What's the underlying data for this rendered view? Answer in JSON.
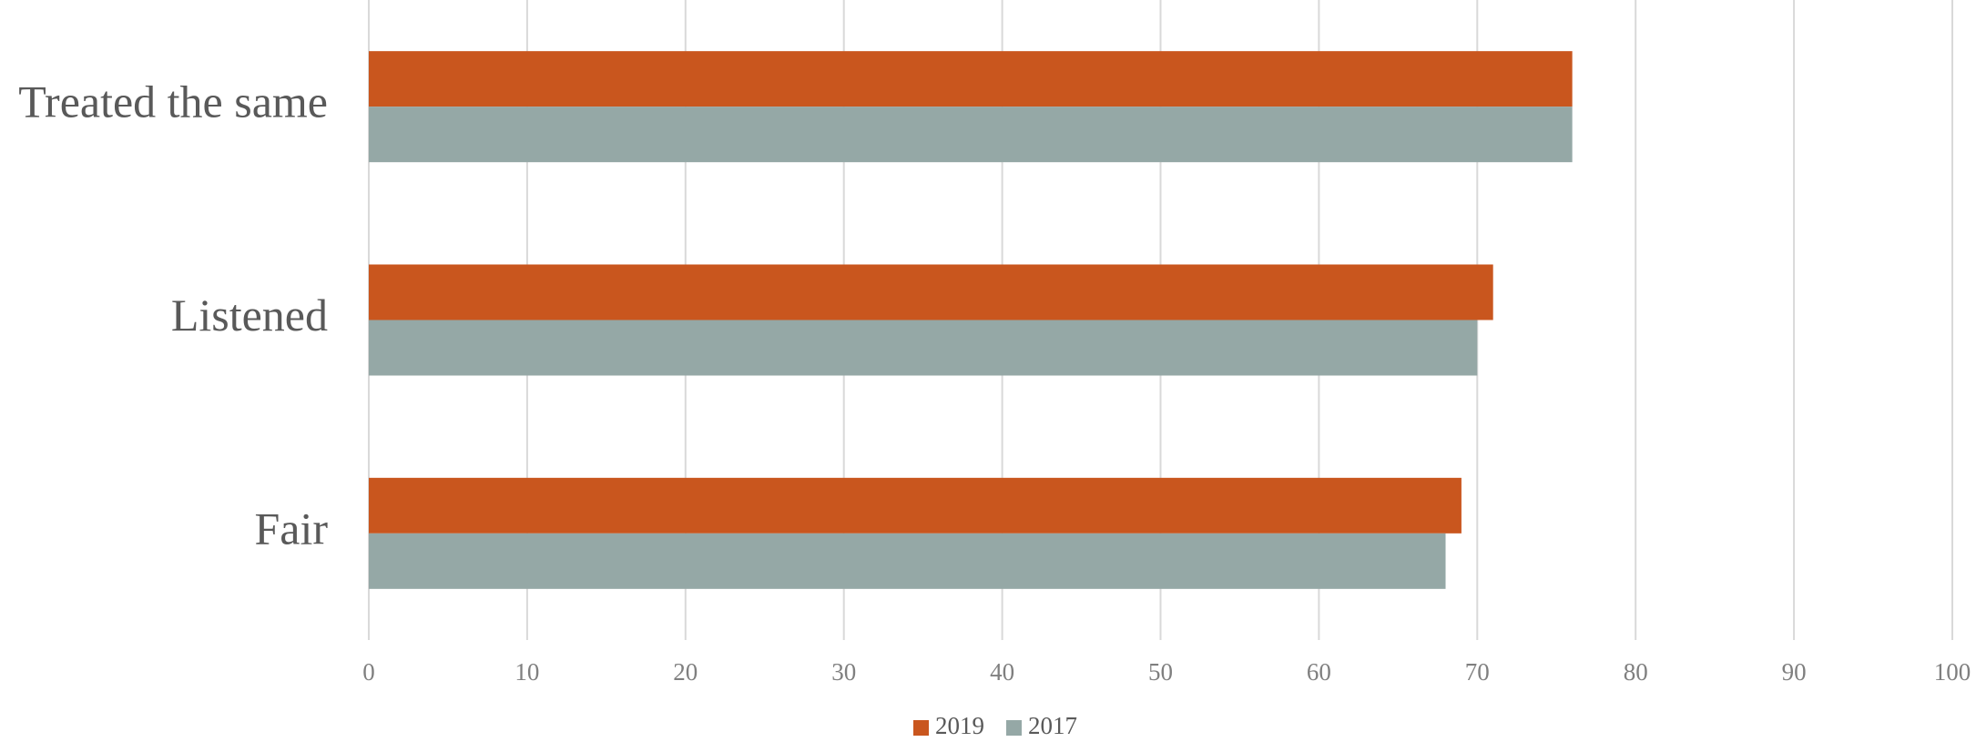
{
  "chart_data": {
    "type": "hbar",
    "categories": [
      "Treated the same",
      "Listened",
      "Fair"
    ],
    "series": [
      {
        "name": "2019",
        "color": "#c9561e",
        "values": [
          76,
          71,
          69
        ]
      },
      {
        "name": "2017",
        "color": "#95a8a6",
        "values": [
          76,
          70,
          68
        ]
      }
    ],
    "xlim": [
      0,
      100
    ],
    "xticks": [
      0,
      10,
      20,
      30,
      40,
      50,
      60,
      70,
      80,
      90,
      100
    ],
    "grid": true,
    "legend": "bottom"
  }
}
